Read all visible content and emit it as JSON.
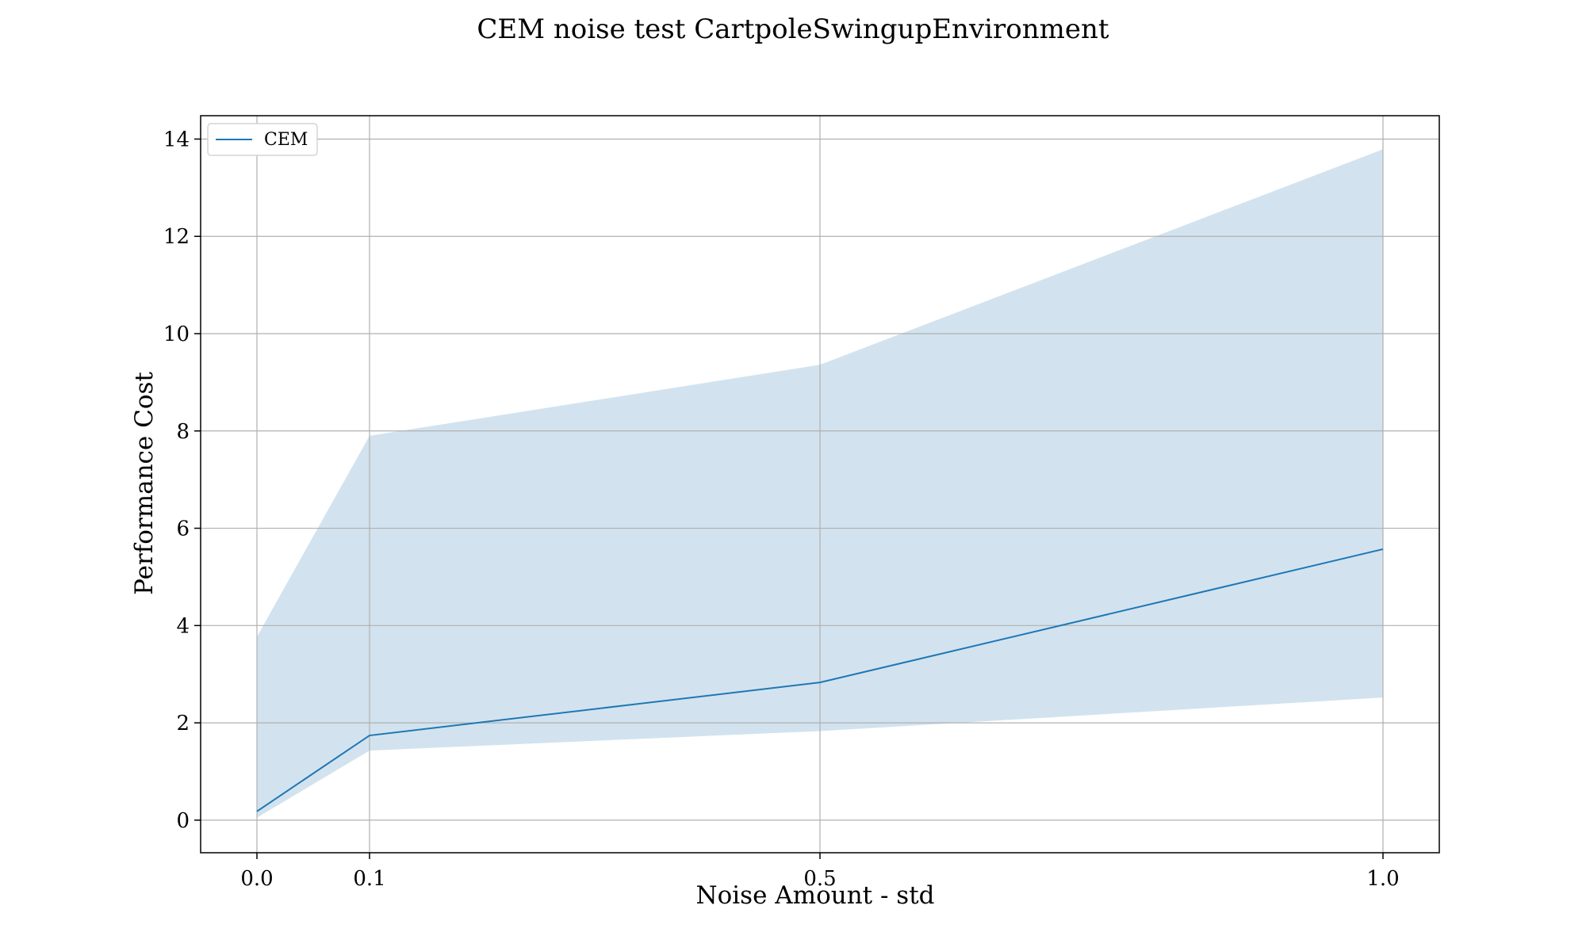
{
  "chart_data": {
    "type": "line",
    "title": "CEM noise test CartpoleSwingupEnvironment",
    "xlabel": "Noise Amount - std",
    "ylabel": "Performance Cost",
    "x": [
      0.0,
      0.1,
      0.5,
      1.0
    ],
    "x_tick_labels": [
      "0.0",
      "0.1",
      "0.5",
      "1.0"
    ],
    "y_ticks": [
      0,
      2,
      4,
      6,
      8,
      10,
      12,
      14
    ],
    "y_tick_labels": [
      "0",
      "2",
      "4",
      "6",
      "8",
      "10",
      "12",
      "14"
    ],
    "xlim": [
      -0.05,
      1.05
    ],
    "ylim": [
      -0.67,
      14.48
    ],
    "grid": true,
    "legend_position": "upper-left",
    "series": [
      {
        "name": "CEM",
        "values": [
          0.18,
          1.74,
          2.83,
          5.57
        ],
        "band_upper": [
          3.77,
          7.9,
          9.36,
          13.79
        ],
        "band_lower": [
          0.05,
          1.43,
          1.83,
          2.52
        ],
        "color": "#1f77b4",
        "band_color": "#d2e3ef"
      }
    ]
  }
}
